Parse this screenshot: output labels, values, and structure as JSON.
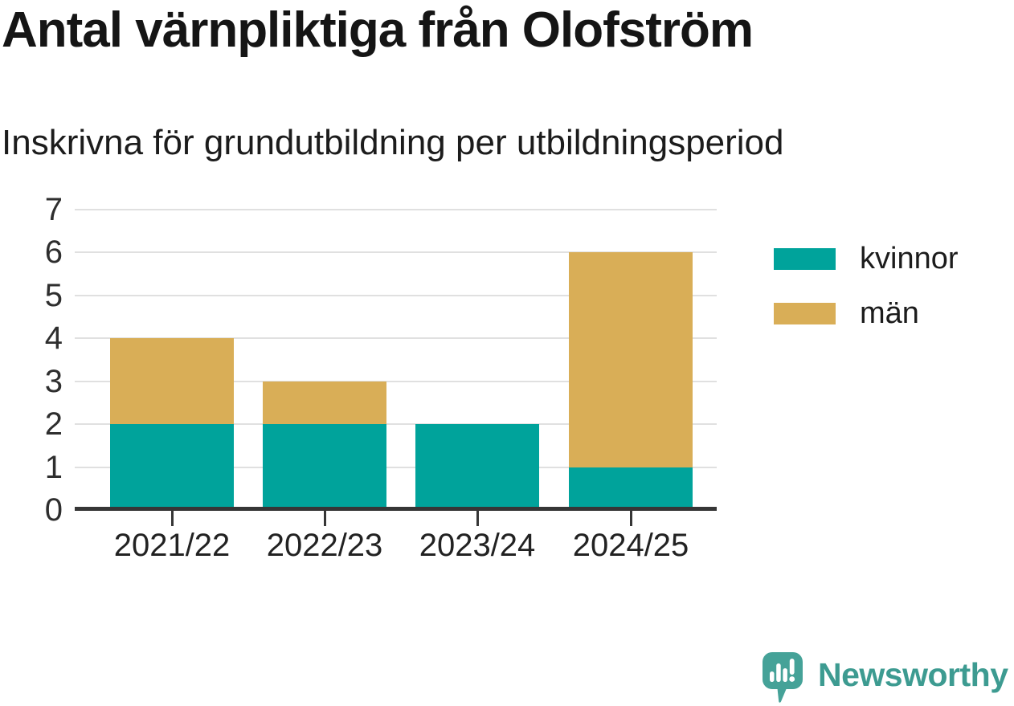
{
  "header": {
    "title": "Antal värnpliktiga från Olofström",
    "subtitle": "Inskrivna för grundutbildning per utbildningsperiod"
  },
  "chart_data": {
    "type": "bar",
    "stacked": true,
    "title": "Antal värnpliktiga från Olofström",
    "subtitle": "Inskrivna för grundutbildning per utbildningsperiod",
    "categories": [
      "2021/22",
      "2022/23",
      "2023/24",
      "2024/25"
    ],
    "series": [
      {
        "name": "kvinnor",
        "color": "#00a39b",
        "values": [
          2,
          2,
          2,
          1
        ]
      },
      {
        "name": "män",
        "color": "#d9ae57",
        "values": [
          2,
          1,
          0,
          5
        ]
      }
    ],
    "totals": [
      4,
      3,
      2,
      6
    ],
    "xlabel": "",
    "ylabel": "",
    "ylim": [
      0,
      7
    ],
    "yticks": [
      0,
      1,
      2,
      3,
      4,
      5,
      6,
      7
    ],
    "grid": true,
    "legend_position": "right"
  },
  "style": {
    "grid_color": "#e0e0e0",
    "axis_color": "#363636",
    "tick_label_color": "#2e2e2e"
  },
  "footer": {
    "brand": "Newsworthy",
    "brand_color": "#3d9b91",
    "logo_bubble_color": "#45a298",
    "logo_icon": "newsworthy-speech-bubble-bar-chart-icon"
  }
}
